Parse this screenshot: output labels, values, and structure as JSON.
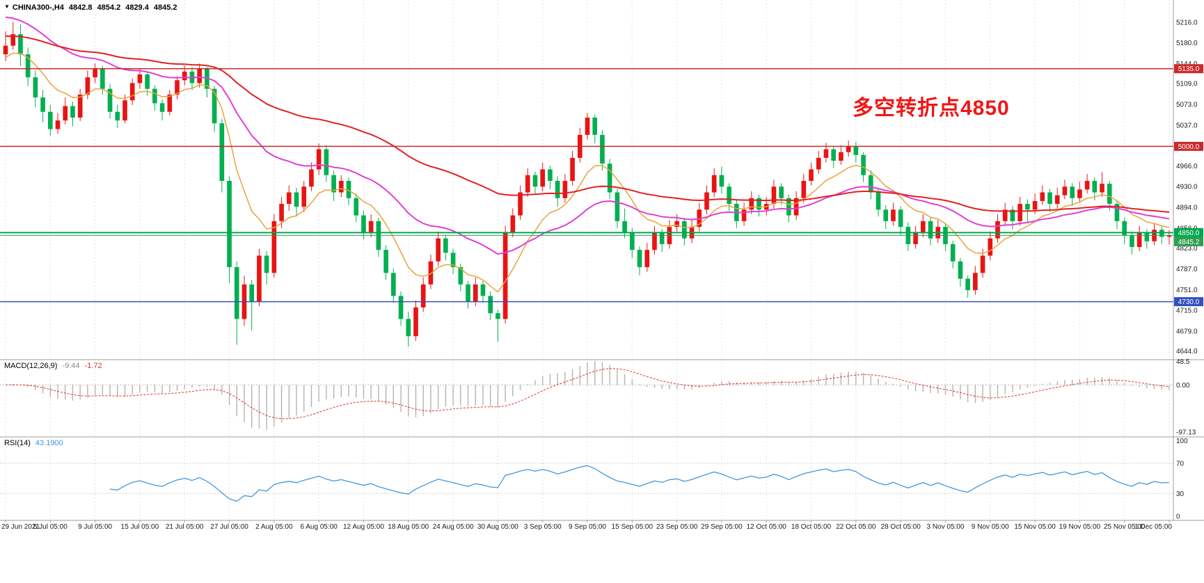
{
  "header": {
    "marker": "▼",
    "symbol_period": "CHINA300-,H4",
    "open": "4842.8",
    "high": "4854.2",
    "low": "4829.4",
    "close": "4845.2"
  },
  "annotation": {
    "text": "多空转折点4850",
    "color": "#f21515"
  },
  "macd_panel": {
    "label": "MACD(12,26,9)",
    "value_hist": "-9.44",
    "value_signal": "-1.72"
  },
  "rsi_panel": {
    "label": "RSI(14)",
    "value": "43.1900"
  },
  "style": {
    "background": "#ffffff",
    "grid": "#e3e3e3",
    "separator": "#9c9c9c",
    "axis_text": "#1c1c1c"
  },
  "chart_data": {
    "type": "candlestick",
    "title": "CHINA300- H4 candlestick chart with MACD and RSI",
    "symbol": "CHINA300-",
    "timeframe": "H4",
    "up_color": "#e81414",
    "down_color": "#00b050",
    "ylim": [
      4634,
      5252
    ],
    "y_ticks": [
      5216,
      5180,
      5144,
      5109,
      5073,
      5037,
      5001,
      4966,
      4930,
      4894,
      4858,
      4823,
      4787,
      4751,
      4715,
      4679,
      4644
    ],
    "label_stride": 6,
    "x_labels": [
      "29 Jun 2021",
      "5 Jul 05:00",
      "9 Jul 05:00",
      "15 Jul 05:00",
      "21 Jul 05:00",
      "27 Jul 05:00",
      "2 Aug 05:00",
      "6 Aug 05:00",
      "12 Aug 05:00",
      "18 Aug 05:00",
      "24 Aug 05:00",
      "30 Aug 05:00",
      "3 Sep 05:00",
      "9 Sep 05:00",
      "15 Sep 05:00",
      "23 Sep 05:00",
      "29 Sep 05:00",
      "12 Oct 05:00",
      "18 Oct 05:00",
      "22 Oct 05:00",
      "28 Oct 05:00",
      "3 Nov 05:00",
      "9 Nov 05:00",
      "15 Nov 05:00",
      "19 Nov 05:00",
      "25 Nov 05:00",
      "1 Dec 05:00"
    ],
    "candles": [
      [
        5160,
        5200,
        5148,
        5175
      ],
      [
        5175,
        5216,
        5168,
        5195
      ],
      [
        5195,
        5212,
        5140,
        5160
      ],
      [
        5160,
        5172,
        5105,
        5120
      ],
      [
        5120,
        5132,
        5068,
        5085
      ],
      [
        5085,
        5098,
        5042,
        5060
      ],
      [
        5060,
        5072,
        5018,
        5030
      ],
      [
        5030,
        5058,
        5022,
        5045
      ],
      [
        5045,
        5085,
        5038,
        5070
      ],
      [
        5070,
        5078,
        5035,
        5050
      ],
      [
        5050,
        5100,
        5044,
        5090
      ],
      [
        5090,
        5132,
        5082,
        5120
      ],
      [
        5120,
        5144,
        5110,
        5135
      ],
      [
        5135,
        5140,
        5090,
        5100
      ],
      [
        5100,
        5108,
        5048,
        5060
      ],
      [
        5060,
        5072,
        5032,
        5045
      ],
      [
        5045,
        5090,
        5040,
        5080
      ],
      [
        5080,
        5118,
        5072,
        5110
      ],
      [
        5110,
        5134,
        5100,
        5125
      ],
      [
        5125,
        5130,
        5088,
        5100
      ],
      [
        5100,
        5106,
        5062,
        5075
      ],
      [
        5075,
        5082,
        5045,
        5060
      ],
      [
        5060,
        5098,
        5054,
        5090
      ],
      [
        5090,
        5122,
        5082,
        5115
      ],
      [
        5115,
        5140,
        5106,
        5130
      ],
      [
        5130,
        5138,
        5098,
        5110
      ],
      [
        5110,
        5144,
        5102,
        5135
      ],
      [
        5135,
        5138,
        5085,
        5100
      ],
      [
        5100,
        5105,
        5025,
        5040
      ],
      [
        5040,
        5048,
        4920,
        4940
      ],
      [
        4940,
        4948,
        4762,
        4790
      ],
      [
        4790,
        4800,
        4655,
        4700
      ],
      [
        4700,
        4775,
        4688,
        4760
      ],
      [
        4760,
        4768,
        4680,
        4730
      ],
      [
        4730,
        4822,
        4722,
        4810
      ],
      [
        4810,
        4818,
        4760,
        4780
      ],
      [
        4780,
        4882,
        4772,
        4870
      ],
      [
        4870,
        4912,
        4858,
        4900
      ],
      [
        4900,
        4932,
        4888,
        4920
      ],
      [
        4920,
        4928,
        4878,
        4895
      ],
      [
        4895,
        4940,
        4886,
        4930
      ],
      [
        4930,
        4972,
        4922,
        4960
      ],
      [
        4960,
        5005,
        4950,
        4995
      ],
      [
        4995,
        5002,
        4938,
        4950
      ],
      [
        4950,
        4958,
        4905,
        4920
      ],
      [
        4920,
        4950,
        4912,
        4940
      ],
      [
        4940,
        4946,
        4898,
        4910
      ],
      [
        4910,
        4918,
        4868,
        4880
      ],
      [
        4880,
        4888,
        4838,
        4850
      ],
      [
        4850,
        4882,
        4842,
        4870
      ],
      [
        4870,
        4876,
        4808,
        4820
      ],
      [
        4820,
        4828,
        4768,
        4780
      ],
      [
        4780,
        4788,
        4728,
        4740
      ],
      [
        4740,
        4748,
        4688,
        4700
      ],
      [
        4700,
        4712,
        4652,
        4670
      ],
      [
        4670,
        4732,
        4662,
        4720
      ],
      [
        4720,
        4772,
        4712,
        4760
      ],
      [
        4760,
        4812,
        4752,
        4800
      ],
      [
        4800,
        4852,
        4792,
        4840
      ],
      [
        4840,
        4846,
        4802,
        4815
      ],
      [
        4815,
        4822,
        4778,
        4790
      ],
      [
        4790,
        4796,
        4748,
        4760
      ],
      [
        4760,
        4766,
        4718,
        4730
      ],
      [
        4730,
        4772,
        4722,
        4760
      ],
      [
        4760,
        4766,
        4728,
        4740
      ],
      [
        4740,
        4748,
        4698,
        4710
      ],
      [
        4710,
        4716,
        4660,
        4700
      ],
      [
        4700,
        4862,
        4692,
        4850
      ],
      [
        4850,
        4892,
        4842,
        4880
      ],
      [
        4880,
        4932,
        4872,
        4920
      ],
      [
        4920,
        4962,
        4912,
        4950
      ],
      [
        4950,
        4956,
        4916,
        4930
      ],
      [
        4930,
        4972,
        4922,
        4960
      ],
      [
        4960,
        4966,
        4926,
        4940
      ],
      [
        4940,
        4948,
        4895,
        4910
      ],
      [
        4910,
        4952,
        4902,
        4940
      ],
      [
        4940,
        4992,
        4932,
        4980
      ],
      [
        4980,
        5032,
        4972,
        5020
      ],
      [
        5020,
        5058,
        5012,
        5050
      ],
      [
        5050,
        5055,
        5005,
        5020
      ],
      [
        5020,
        5028,
        4958,
        4970
      ],
      [
        4970,
        4978,
        4908,
        4920
      ],
      [
        4920,
        4926,
        4858,
        4870
      ],
      [
        4870,
        4892,
        4840,
        4850
      ],
      [
        4850,
        4858,
        4806,
        4820
      ],
      [
        4820,
        4826,
        4776,
        4790
      ],
      [
        4790,
        4832,
        4782,
        4820
      ],
      [
        4820,
        4862,
        4812,
        4850
      ],
      [
        4850,
        4856,
        4816,
        4830
      ],
      [
        4830,
        4872,
        4822,
        4860
      ],
      [
        4860,
        4882,
        4852,
        4870
      ],
      [
        4870,
        4876,
        4828,
        4840
      ],
      [
        4840,
        4872,
        4832,
        4860
      ],
      [
        4860,
        4902,
        4852,
        4890
      ],
      [
        4890,
        4932,
        4882,
        4920
      ],
      [
        4920,
        4962,
        4912,
        4950
      ],
      [
        4950,
        4965,
        4918,
        4930
      ],
      [
        4930,
        4936,
        4888,
        4900
      ],
      [
        4900,
        4906,
        4858,
        4870
      ],
      [
        4870,
        4902,
        4862,
        4890
      ],
      [
        4890,
        4922,
        4882,
        4910
      ],
      [
        4910,
        4916,
        4878,
        4890
      ],
      [
        4890,
        4912,
        4880,
        4900
      ],
      [
        4900,
        4942,
        4892,
        4930
      ],
      [
        4930,
        4936,
        4898,
        4910
      ],
      [
        4910,
        4916,
        4868,
        4880
      ],
      [
        4880,
        4922,
        4872,
        4910
      ],
      [
        4910,
        4952,
        4902,
        4940
      ],
      [
        4940,
        4972,
        4932,
        4960
      ],
      [
        4960,
        4992,
        4952,
        4980
      ],
      [
        4980,
        5006,
        4972,
        4995
      ],
      [
        4995,
        5000,
        4962,
        4975
      ],
      [
        4975,
        5002,
        4968,
        4990
      ],
      [
        4990,
        5010,
        4982,
        5000
      ],
      [
        5000,
        5008,
        4972,
        4985
      ],
      [
        4985,
        4990,
        4938,
        4950
      ],
      [
        4950,
        4958,
        4908,
        4920
      ],
      [
        4920,
        4926,
        4878,
        4890
      ],
      [
        4890,
        4898,
        4856,
        4870
      ],
      [
        4870,
        4902,
        4862,
        4890
      ],
      [
        4890,
        4896,
        4846,
        4860
      ],
      [
        4860,
        4868,
        4818,
        4830
      ],
      [
        4830,
        4862,
        4822,
        4850
      ],
      [
        4850,
        4882,
        4842,
        4870
      ],
      [
        4870,
        4876,
        4828,
        4840
      ],
      [
        4840,
        4872,
        4832,
        4860
      ],
      [
        4860,
        4866,
        4818,
        4830
      ],
      [
        4830,
        4836,
        4788,
        4800
      ],
      [
        4800,
        4806,
        4756,
        4770
      ],
      [
        4770,
        4776,
        4737,
        4750
      ],
      [
        4750,
        4792,
        4742,
        4780
      ],
      [
        4780,
        4822,
        4772,
        4810
      ],
      [
        4810,
        4852,
        4802,
        4840
      ],
      [
        4840,
        4882,
        4832,
        4870
      ],
      [
        4870,
        4902,
        4862,
        4890
      ],
      [
        4890,
        4896,
        4856,
        4870
      ],
      [
        4870,
        4912,
        4862,
        4900
      ],
      [
        4900,
        4908,
        4868,
        4890
      ],
      [
        4890,
        4918,
        4882,
        4905
      ],
      [
        4905,
        4932,
        4898,
        4920
      ],
      [
        4920,
        4926,
        4886,
        4900
      ],
      [
        4900,
        4928,
        4892,
        4915
      ],
      [
        4915,
        4942,
        4908,
        4930
      ],
      [
        4930,
        4936,
        4896,
        4910
      ],
      [
        4910,
        4938,
        4902,
        4925
      ],
      [
        4925,
        4952,
        4918,
        4940
      ],
      [
        4940,
        4946,
        4906,
        4920
      ],
      [
        4920,
        4955,
        4912,
        4935
      ],
      [
        4935,
        4940,
        4888,
        4900
      ],
      [
        4900,
        4906,
        4856,
        4870
      ],
      [
        4870,
        4876,
        4830,
        4845
      ],
      [
        4845,
        4852,
        4812,
        4825
      ],
      [
        4825,
        4862,
        4818,
        4850
      ],
      [
        4850,
        4856,
        4822,
        4835
      ],
      [
        4835,
        4866,
        4828,
        4855
      ],
      [
        4855,
        4861,
        4830,
        4842.8
      ],
      [
        4842.8,
        4854.2,
        4829.4,
        4845.2
      ]
    ],
    "moving_averages": [
      {
        "name": "ma-fast-orange",
        "period": 10,
        "seed": 5150,
        "color": "#eaa23c",
        "width": 1.5
      },
      {
        "name": "ma-mid-magenta",
        "period": 30,
        "seed": 5228,
        "color": "#e13fd2",
        "width": 2
      },
      {
        "name": "ma-slow-red",
        "period": 70,
        "seed": 5192,
        "color": "#e02020",
        "width": 2
      }
    ],
    "hlines": [
      {
        "price": 5135.0,
        "label": "5135.0",
        "color": "#c92a2a",
        "width": 1.6
      },
      {
        "price": 5000.0,
        "label": "5000.0",
        "color": "#c92a2a",
        "width": 1.6
      },
      {
        "price": 4850.0,
        "label": "4850.0",
        "color": "#00a651",
        "width": 2
      },
      {
        "price": 4730.0,
        "label": "4730.0",
        "color": "#3450c0",
        "width": 1.6
      }
    ],
    "current_price": {
      "value": 4845.2,
      "label": "4845.2",
      "color": "#2e9e4f",
      "width": 1
    },
    "indicators": {
      "macd": {
        "fast": 12,
        "slow": 26,
        "signal": 9,
        "ylim": [
          -107,
          52
        ],
        "y_ticks": [
          48.5,
          0,
          -97.13
        ],
        "y_tick_labels": [
          "48.5",
          "0.00",
          "-97.13"
        ],
        "hist_color": "#b3b3b3",
        "signal_color": "#e03030"
      },
      "rsi": {
        "period": 14,
        "ylim": [
          -3,
          105
        ],
        "levels": [
          70,
          30
        ],
        "y_ticks": [
          100,
          70,
          30,
          0
        ],
        "y_tick_labels": [
          "100",
          "70",
          "30",
          "0"
        ],
        "line_color": "#3f97e0",
        "level_color": "#cfcfcf"
      }
    }
  }
}
